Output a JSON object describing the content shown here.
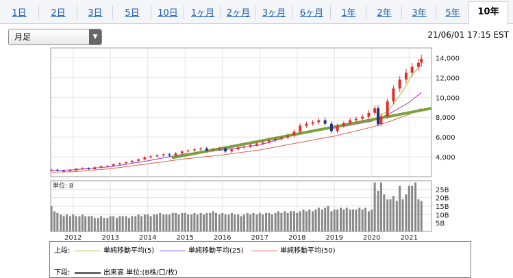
{
  "tabs": [
    "1日",
    "2日",
    "3日",
    "5日",
    "10日",
    "1ヶ月",
    "2ヶ月",
    "3ヶ月",
    "6ヶ月",
    "1年",
    "2年",
    "3年",
    "5年",
    "10年"
  ],
  "active_tab": "10年",
  "period_select": {
    "value": "月足"
  },
  "timestamp": "21/06/01 17:15 EST",
  "colors": {
    "up": "#e0302a",
    "down": "#1f2f8a",
    "ma5": "#9bc53d",
    "ma25": "#9b2fd8",
    "ma50": "#e0604a",
    "trend": "#7aa23c",
    "volume": "#888888"
  },
  "legend": {
    "upper_label": "上段:",
    "ma5": "単純移動平均(5)",
    "ma25": "単純移動平均(25)",
    "ma50": "単純移動平均(50)",
    "lower_label": "下段:",
    "volume": "出来高 単位:(B株/口/枚)"
  },
  "chart_data": [
    {
      "type": "candlestick",
      "title": "",
      "y_tick_labels": [
        "4,000",
        "6,000",
        "8,000",
        "10,000",
        "12,000",
        "14,000"
      ],
      "ylim": [
        2000,
        15000
      ],
      "x_tick_labels": [
        "2012",
        "2013",
        "2014",
        "2015",
        "2016",
        "2017",
        "2018",
        "2019",
        "2020",
        "2021"
      ],
      "xlim": [
        2011.4,
        2021.6
      ],
      "grid": true,
      "close_series": {
        "x": [
          2011.42,
          2011.58,
          2011.75,
          2011.92,
          2012.08,
          2012.25,
          2012.42,
          2012.58,
          2012.75,
          2012.92,
          2013.08,
          2013.25,
          2013.42,
          2013.58,
          2013.75,
          2013.92,
          2014.08,
          2014.25,
          2014.42,
          2014.58,
          2014.75,
          2014.92,
          2015.08,
          2015.25,
          2015.42,
          2015.58,
          2015.75,
          2015.92,
          2016.08,
          2016.25,
          2016.42,
          2016.58,
          2016.75,
          2016.92,
          2017.08,
          2017.25,
          2017.42,
          2017.58,
          2017.75,
          2017.92,
          2018.08,
          2018.25,
          2018.42,
          2018.58,
          2018.75,
          2018.92,
          2019.08,
          2019.25,
          2019.42,
          2019.58,
          2019.75,
          2019.92,
          2020.08,
          2020.17,
          2020.25,
          2020.42,
          2020.58,
          2020.75,
          2020.92,
          2021.08,
          2021.25,
          2021.33
        ],
        "y": [
          2700,
          2600,
          2550,
          2650,
          2800,
          2850,
          2750,
          2950,
          3050,
          3100,
          3250,
          3350,
          3450,
          3600,
          3750,
          3950,
          4050,
          4150,
          4250,
          4150,
          4350,
          4550,
          4650,
          4750,
          4850,
          4650,
          4750,
          4850,
          4550,
          4750,
          4950,
          5050,
          5200,
          5350,
          5450,
          5650,
          5800,
          5950,
          6150,
          6550,
          7150,
          7350,
          7500,
          7700,
          7350,
          6600,
          7150,
          7400,
          7700,
          7850,
          8050,
          8450,
          8900,
          7300,
          8100,
          9600,
          10900,
          11800,
          12500,
          13100,
          13500,
          13900
        ]
      },
      "ma_lines": [
        {
          "name": "単純移動平均(5)",
          "x": [
            2020.08,
            2020.25,
            2020.42,
            2020.58,
            2020.75,
            2020.92,
            2021.08,
            2021.33
          ],
          "y": [
            8500,
            8200,
            8600,
            9300,
            10200,
            11200,
            12300,
            13300
          ]
        },
        {
          "name": "単純移動平均(25)",
          "x": [
            2011.42,
            2012.0,
            2013.0,
            2014.0,
            2015.0,
            2016.0,
            2017.0,
            2018.0,
            2019.0,
            2020.0,
            2020.5,
            2021.0,
            2021.33
          ],
          "y": [
            2600,
            2700,
            3000,
            3600,
            4300,
            4700,
            5200,
            6300,
            6900,
            7600,
            8400,
            9500,
            10500
          ]
        },
        {
          "name": "単純移動平均(50)",
          "x": [
            2011.42,
            2012.0,
            2013.0,
            2014.0,
            2015.0,
            2016.0,
            2017.0,
            2018.0,
            2019.0,
            2020.0,
            2020.5,
            2021.0,
            2021.33
          ],
          "y": [
            2450,
            2500,
            2800,
            3300,
            3800,
            4200,
            4700,
            5400,
            6100,
            7000,
            7600,
            8300,
            8900
          ]
        },
        {
          "name": "trendline",
          "x": [
            2014.65,
            2021.6
          ],
          "y": [
            3900,
            8900
          ]
        }
      ]
    },
    {
      "type": "bar",
      "title": "",
      "ylabel": "単位: B",
      "y_tick_labels": [
        "5B",
        "10B",
        "15B",
        "20B",
        "25B"
      ],
      "ylim": [
        0,
        30
      ],
      "xlim": [
        2011.4,
        2021.6
      ],
      "x": [
        2011.42,
        2011.5,
        2011.58,
        2011.67,
        2011.75,
        2011.83,
        2011.92,
        2012.0,
        2012.08,
        2012.17,
        2012.25,
        2012.33,
        2012.42,
        2012.5,
        2012.58,
        2012.67,
        2012.75,
        2012.83,
        2012.92,
        2013.0,
        2013.08,
        2013.17,
        2013.25,
        2013.33,
        2013.42,
        2013.5,
        2013.58,
        2013.67,
        2013.75,
        2013.83,
        2013.92,
        2014.0,
        2014.08,
        2014.17,
        2014.25,
        2014.33,
        2014.42,
        2014.5,
        2014.58,
        2014.67,
        2014.75,
        2014.83,
        2014.92,
        2015.0,
        2015.08,
        2015.17,
        2015.25,
        2015.33,
        2015.42,
        2015.5,
        2015.58,
        2015.67,
        2015.75,
        2015.83,
        2015.92,
        2016.0,
        2016.08,
        2016.17,
        2016.25,
        2016.33,
        2016.42,
        2016.5,
        2016.58,
        2016.67,
        2016.75,
        2016.83,
        2016.92,
        2017.0,
        2017.08,
        2017.17,
        2017.25,
        2017.33,
        2017.42,
        2017.5,
        2017.58,
        2017.67,
        2017.75,
        2017.83,
        2017.92,
        2018.0,
        2018.08,
        2018.17,
        2018.25,
        2018.33,
        2018.42,
        2018.5,
        2018.58,
        2018.67,
        2018.75,
        2018.83,
        2018.92,
        2019.0,
        2019.08,
        2019.17,
        2019.25,
        2019.33,
        2019.42,
        2019.5,
        2019.58,
        2019.67,
        2019.75,
        2019.83,
        2019.92,
        2020.0,
        2020.08,
        2020.17,
        2020.25,
        2020.33,
        2020.42,
        2020.5,
        2020.58,
        2020.67,
        2020.75,
        2020.83,
        2020.92,
        2021.0,
        2021.08,
        2021.17,
        2021.25,
        2021.33
      ],
      "values": [
        15,
        12,
        11,
        10,
        9,
        10,
        9,
        10,
        9,
        9,
        10,
        9,
        9,
        9,
        8,
        8,
        9,
        8,
        8,
        9,
        9,
        8,
        9,
        9,
        9,
        8,
        9,
        9,
        10,
        9,
        10,
        10,
        9,
        10,
        10,
        11,
        10,
        10,
        10,
        11,
        11,
        10,
        11,
        11,
        10,
        10,
        11,
        10,
        11,
        10,
        11,
        11,
        12,
        11,
        10,
        11,
        10,
        10,
        11,
        10,
        10,
        9,
        10,
        11,
        10,
        11,
        10,
        11,
        10,
        11,
        11,
        10,
        11,
        12,
        11,
        12,
        11,
        12,
        12,
        11,
        12,
        13,
        12,
        13,
        12,
        13,
        14,
        13,
        14,
        15,
        12,
        13,
        13,
        14,
        13,
        14,
        13,
        13,
        13,
        14,
        13,
        14,
        12,
        13,
        29,
        24,
        29,
        22,
        19,
        19,
        21,
        18,
        27,
        19,
        22,
        27,
        27,
        29,
        19,
        18
      ]
    }
  ]
}
